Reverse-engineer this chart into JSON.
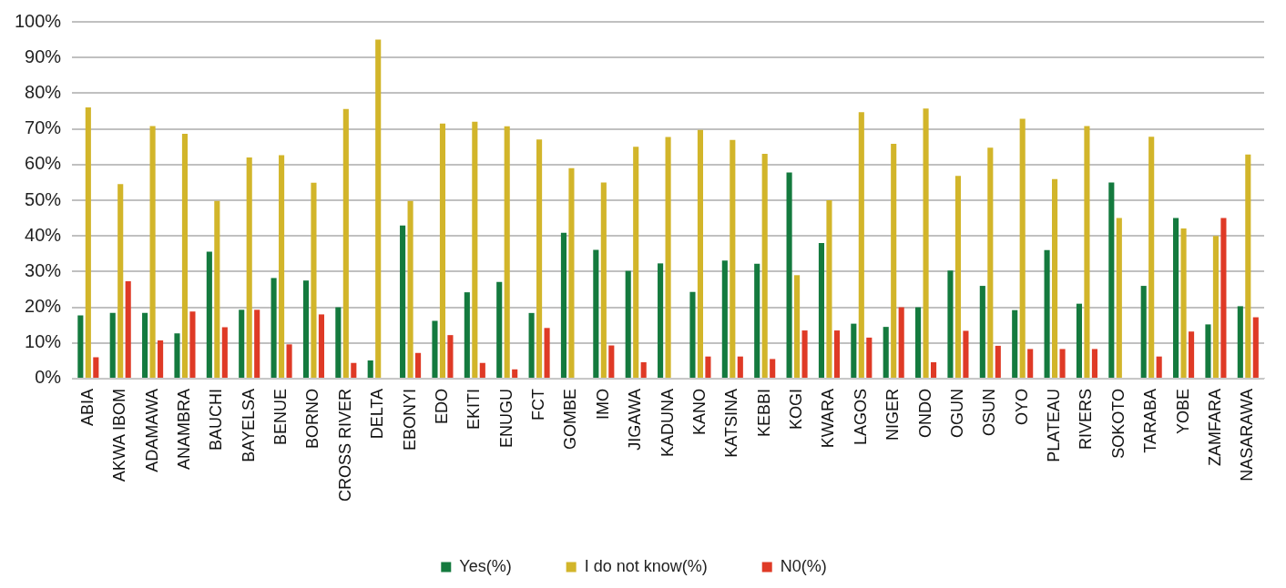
{
  "chart_data": {
    "type": "bar",
    "categories": [
      "ABIA",
      "AKWA IBOM",
      "ADAMAWA",
      "ANAMBRA",
      "BAUCHI",
      "BAYELSA",
      "BENUE",
      "BORNO",
      "CROSS RIVER",
      "DELTA",
      "EBONYI",
      "EDO",
      "EKITI",
      "ENUGU",
      "FCT",
      "GOMBE",
      "IMO",
      "JIGAWA",
      "KADUNA",
      "KANO",
      "KATSINA",
      "KEBBI",
      "KOGI",
      "KWARA",
      "LAGOS",
      "NIGER",
      "ONDO",
      "OGUN",
      "OSUN",
      "OYO",
      "PLATEAU",
      "RIVERS",
      "SOKOTO",
      "TARABA",
      "YOBE",
      "ZAMFARA",
      "NASARAWA"
    ],
    "series": [
      {
        "name": "Yes(%)",
        "color": "#147a3e",
        "values": [
          17.7,
          18.4,
          18.4,
          12.7,
          35.6,
          19.3,
          28.2,
          27.5,
          20,
          5.1,
          42.9,
          16.2,
          24.2,
          27.1,
          18.4,
          40.9,
          36.1,
          30.2,
          32.3,
          24.3,
          33.1,
          32.2,
          57.8,
          38,
          15.4,
          14.5,
          20,
          30.3,
          26,
          19.2,
          36,
          21,
          55,
          26,
          45,
          15.2,
          20.3
        ]
      },
      {
        "name": "I do not know(%)",
        "color": "#d2b52a",
        "values": [
          76,
          54.5,
          70.8,
          68.6,
          49.8,
          62,
          62.6,
          54.9,
          75.6,
          95,
          49.8,
          71.5,
          72,
          70.7,
          67,
          59,
          55,
          65,
          67.7,
          69.7,
          66.9,
          63,
          29,
          50,
          74.7,
          65.8,
          75.7,
          56.8,
          64.7,
          72.8,
          55.9,
          70.8,
          45,
          67.8,
          42.1,
          40,
          62.8
        ]
      },
      {
        "name": "N0(%)",
        "color": "#df3a26",
        "values": [
          6,
          27.3,
          10.7,
          18.8,
          14.4,
          19.3,
          9.6,
          18,
          4.4,
          0,
          7.2,
          12.2,
          4.4,
          2.6,
          14.2,
          0,
          9.3,
          4.6,
          0,
          6.2,
          6.2,
          5.5,
          13.5,
          13.5,
          11.5,
          20,
          4.6,
          13.4,
          9.2,
          8.3,
          8.3,
          8.3,
          0,
          6.2,
          13.2,
          45,
          17.2
        ]
      }
    ],
    "ylim": [
      0,
      100
    ],
    "yticks": [
      {
        "value": 0,
        "label": "0%"
      },
      {
        "value": 10,
        "label": "10%"
      },
      {
        "value": 20,
        "label": "20%"
      },
      {
        "value": 30,
        "label": "30%"
      },
      {
        "value": 40,
        "label": "40%"
      },
      {
        "value": 50,
        "label": "50%"
      },
      {
        "value": 60,
        "label": "60%"
      },
      {
        "value": 70,
        "label": "70%"
      },
      {
        "value": 80,
        "label": "80%"
      },
      {
        "value": 90,
        "label": "90%"
      },
      {
        "value": 100,
        "label": "100%"
      }
    ],
    "grid": "y",
    "legend": "bottom"
  }
}
